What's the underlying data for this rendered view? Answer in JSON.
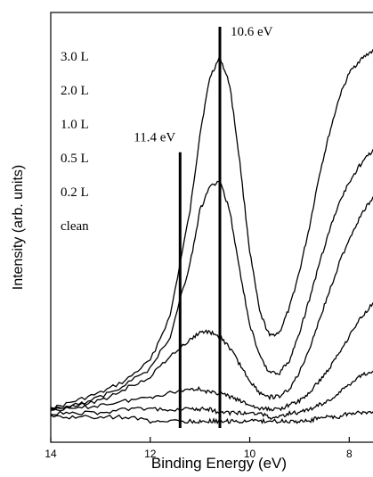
{
  "chart_data": {
    "type": "line",
    "title": "",
    "xlabel": "Binding Energy (eV)",
    "ylabel": "Intensity (arb. units)",
    "x_reversed": true,
    "xlim": [
      14,
      7.2
    ],
    "ylim": [
      0,
      100
    ],
    "x_ticks": [
      14,
      12,
      10,
      8
    ],
    "x_tick_labels": [
      "14",
      "12",
      "10",
      "8"
    ],
    "grid": false,
    "legend_position": "upper-left",
    "legend_labels": [
      "3.0 L",
      "2.0 L",
      "1.0 L",
      "0.5 L",
      "0.2 L",
      "clean"
    ],
    "series": [
      {
        "name": "3.0 L",
        "x": [
          14,
          13.5,
          13,
          12.5,
          12,
          11.6,
          11.2,
          11.0,
          10.8,
          10.6,
          10.4,
          10.2,
          10.0,
          9.8,
          9.6,
          9.4,
          9.2,
          9.0,
          8.8,
          8.6,
          8.4,
          8.2,
          8.0,
          7.8,
          7.6,
          7.4,
          7.2
        ],
        "y": [
          6,
          8,
          10,
          13,
          18,
          29,
          55,
          74,
          88,
          93,
          86,
          67,
          45,
          30,
          24,
          25,
          31,
          40,
          51,
          64,
          74,
          83,
          89,
          92,
          94,
          95,
          96
        ]
      },
      {
        "name": "2.0 L",
        "x": [
          14,
          13.5,
          13,
          12.5,
          12,
          11.6,
          11.2,
          11.0,
          10.8,
          10.6,
          10.4,
          10.2,
          10.0,
          9.8,
          9.6,
          9.4,
          9.2,
          9.0,
          8.8,
          8.6,
          8.4,
          8.2,
          8.0,
          7.8,
          7.6,
          7.4,
          7.2
        ],
        "y": [
          6,
          7,
          9,
          12,
          16,
          24,
          42,
          55,
          61,
          62,
          55,
          40,
          27,
          19,
          15,
          15,
          18,
          25,
          33,
          42,
          50,
          57,
          62,
          66,
          69,
          71,
          72
        ]
      },
      {
        "name": "1.0 L",
        "x": [
          14,
          13.5,
          13,
          12.5,
          12,
          11.6,
          11.2,
          11.0,
          10.8,
          10.6,
          10.4,
          10.2,
          10.0,
          9.8,
          9.6,
          9.4,
          9.2,
          9.0,
          8.8,
          8.6,
          8.4,
          8.2,
          8.0,
          7.8,
          7.6,
          7.4,
          7.2
        ],
        "y": [
          6,
          7,
          8,
          11,
          14,
          19,
          23,
          25,
          25,
          24,
          21,
          17,
          13,
          10,
          9,
          9,
          11,
          15,
          21,
          28,
          35,
          42,
          48,
          53,
          57,
          60,
          62
        ]
      },
      {
        "name": "0.5 L",
        "x": [
          14,
          13.5,
          13,
          12.5,
          12,
          11.6,
          11.2,
          11.0,
          10.8,
          10.6,
          10.4,
          10.2,
          10.0,
          9.8,
          9.6,
          9.4,
          9.2,
          9.0,
          8.8,
          8.6,
          8.4,
          8.2,
          8.0,
          7.8,
          7.6,
          7.4,
          7.2
        ],
        "y": [
          6,
          6,
          7,
          8,
          9,
          10,
          11,
          11,
          10,
          10,
          9,
          8,
          7,
          6,
          6,
          6,
          7,
          8,
          10,
          13,
          16,
          20,
          24,
          28,
          31,
          34,
          36
        ]
      },
      {
        "name": "0.2 L",
        "x": [
          14,
          13.5,
          13,
          12.5,
          12,
          11.6,
          11.2,
          11.0,
          10.8,
          10.6,
          10.4,
          10.2,
          10.0,
          9.8,
          9.6,
          9.4,
          9.2,
          9.0,
          8.8,
          8.6,
          8.4,
          8.2,
          8.0,
          7.8,
          7.6,
          7.4,
          7.2
        ],
        "y": [
          5,
          5,
          5,
          6,
          6,
          6,
          6,
          6,
          6,
          5,
          5,
          5,
          5,
          5,
          4,
          4,
          5,
          5,
          6,
          7,
          8,
          10,
          12,
          14,
          15,
          16,
          17
        ]
      },
      {
        "name": "clean",
        "x": [
          14,
          13.5,
          13,
          12.5,
          12,
          11.6,
          11.2,
          11.0,
          10.8,
          10.6,
          10.4,
          10.2,
          10.0,
          9.8,
          9.6,
          9.4,
          9.2,
          9.0,
          8.8,
          8.6,
          8.4,
          8.2,
          8.0,
          7.8,
          7.6,
          7.4,
          7.2
        ],
        "y": [
          4,
          4,
          4,
          4,
          3,
          3,
          3,
          3,
          3,
          3,
          3,
          3,
          3,
          3,
          3,
          3,
          3,
          3,
          3,
          4,
          4,
          4,
          5,
          5,
          5,
          6,
          6
        ]
      }
    ],
    "markers": [
      {
        "x": 11.4,
        "y_top": 69,
        "label": "11.4 eV"
      },
      {
        "x": 10.6,
        "y_top": 100,
        "label": "10.6 eV"
      }
    ]
  }
}
